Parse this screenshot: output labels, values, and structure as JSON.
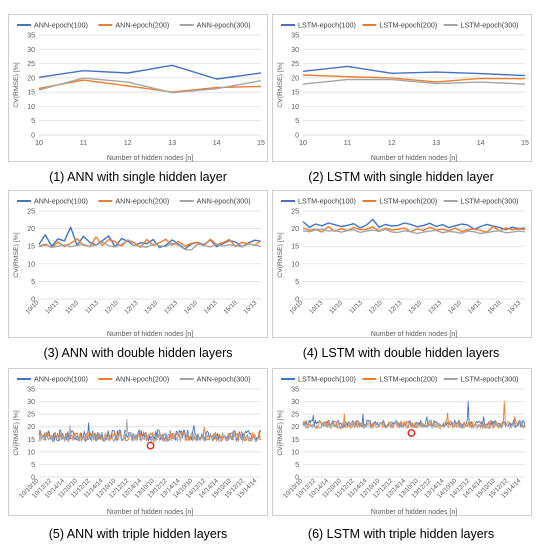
{
  "colors": {
    "series": [
      "#4472c4",
      "#ed7d31",
      "#a5a5a5"
    ],
    "grid": "#d9d9d9",
    "marker": "#e0201b"
  },
  "captions": [
    "(1) ANN with single hidden layer",
    "(2) LSTM with single hidden layer",
    "(3) ANN with double hidden layers",
    "(4) LSTM with double hidden layers",
    "(5) ANN with triple hidden layers",
    "(6) LSTM with triple hidden layers"
  ],
  "chart_data": [
    {
      "type": "line",
      "title": "(1) ANN with single hidden layer",
      "xlabel": "Number of hidden nodes [n]",
      "ylabel": "CV(RMSE) [%]",
      "ylim": [
        0,
        35
      ],
      "yticks": [
        0,
        5,
        10,
        15,
        20,
        25,
        30,
        35
      ],
      "x": [
        "10",
        "11",
        "12",
        "13",
        "14",
        "15"
      ],
      "tick_labels": [
        "10",
        "11",
        "12",
        "13",
        "14",
        "15"
      ],
      "rotate_ticks": false,
      "legend": "top",
      "series": [
        {
          "name": "ANN-epoch(100)",
          "values": [
            20.2,
            22.5,
            21.7,
            24.4,
            19.6,
            21.7
          ]
        },
        {
          "name": "ANN-epoch(200)",
          "values": [
            16.3,
            19.2,
            17.2,
            15.0,
            16.6,
            17.0
          ]
        },
        {
          "name": "ANN-epoch(300)",
          "values": [
            15.8,
            19.9,
            18.5,
            14.8,
            16.2,
            19.0
          ]
        }
      ]
    },
    {
      "type": "line",
      "title": "(2) LSTM with single hidden layer",
      "xlabel": "Number of hidden nodes [n]",
      "ylabel": "CV(RMSE) [%]",
      "ylim": [
        0,
        35
      ],
      "yticks": [
        0,
        5,
        10,
        15,
        20,
        25,
        30,
        35
      ],
      "x": [
        "10",
        "11",
        "12",
        "13",
        "14",
        "15"
      ],
      "tick_labels": [
        "10",
        "11",
        "12",
        "13",
        "14",
        "15"
      ],
      "rotate_ticks": false,
      "legend": "top",
      "series": [
        {
          "name": "LSTM-epoch(100)",
          "values": [
            22.3,
            24.0,
            21.6,
            22.0,
            21.5,
            20.8
          ]
        },
        {
          "name": "LSTM-epoch(200)",
          "values": [
            21.0,
            20.4,
            20.0,
            18.6,
            19.8,
            19.7
          ]
        },
        {
          "name": "LSTM-epoch(300)",
          "values": [
            17.8,
            19.4,
            19.4,
            18.0,
            18.5,
            17.8
          ]
        }
      ]
    },
    {
      "type": "line",
      "title": "(3) ANN with double hidden layers",
      "xlabel": "Number of hidden nodes [n]",
      "ylabel": "CV(RMSE) [%]",
      "ylim": [
        0,
        25
      ],
      "yticks": [
        0,
        5,
        10,
        15,
        20,
        25
      ],
      "x": [
        "10/10",
        "10/11",
        "10/12",
        "10/13",
        "10/14",
        "10/15",
        "11/10",
        "11/11",
        "11/12",
        "11/13",
        "11/14",
        "11/15",
        "12/10",
        "12/11",
        "12/12",
        "12/13",
        "12/14",
        "12/15",
        "13/10",
        "13/11",
        "13/12",
        "13/13",
        "13/14",
        "13/15",
        "14/10",
        "14/11",
        "14/12",
        "14/13",
        "14/14",
        "14/15",
        "15/10",
        "15/11",
        "15/12",
        "15/13",
        "15/14",
        "15/15"
      ],
      "tick_labels": [
        "10/10",
        "10/13",
        "11/10",
        "11/13",
        "12/10",
        "12/13",
        "13/10",
        "13/13",
        "14/10",
        "14/13",
        "15/10",
        "15/13"
      ],
      "rotate_ticks": true,
      "legend": "top",
      "series": [
        {
          "name": "ANN-epoch(100)",
          "values": [
            15.5,
            18.2,
            15.0,
            17.1,
            16.5,
            20.4,
            15.2,
            17.8,
            16.1,
            15.3,
            16.6,
            17.9,
            14.8,
            17.2,
            16.4,
            15.1,
            16.0,
            15.7,
            16.9,
            14.6,
            15.3,
            16.8,
            15.6,
            14.2,
            15.6,
            16.1,
            15.4,
            16.8,
            14.9,
            15.7,
            16.6,
            16.2,
            14.8,
            15.9,
            16.7,
            16.4
          ]
        },
        {
          "name": "ANN-epoch(200)",
          "values": [
            15.0,
            15.6,
            14.6,
            16.2,
            14.9,
            15.8,
            17.1,
            15.3,
            14.9,
            17.6,
            15.2,
            16.9,
            16.3,
            15.0,
            16.8,
            16.0,
            14.7,
            16.9,
            15.2,
            16.0,
            17.0,
            15.3,
            16.4,
            15.0,
            15.8,
            16.1,
            15.1,
            17.0,
            15.4,
            16.0,
            16.9,
            14.9,
            16.1,
            15.7,
            15.3,
            16.5
          ]
        },
        {
          "name": "ANN-epoch(300)",
          "values": [
            14.8,
            15.3,
            14.7,
            15.0,
            15.4,
            14.9,
            15.2,
            15.6,
            14.9,
            15.3,
            16.2,
            15.1,
            14.8,
            15.5,
            16.8,
            15.2,
            15.0,
            14.7,
            15.6,
            15.1,
            14.9,
            15.8,
            15.3,
            14.1,
            13.9,
            15.6,
            15.2,
            14.8,
            15.6,
            15.0,
            15.4,
            15.2,
            14.8,
            15.6,
            15.3,
            14.9
          ]
        }
      ]
    },
    {
      "type": "line",
      "title": "(4) LSTM with double hidden layers",
      "xlabel": "Number of hidden nodes [n]",
      "ylabel": "CV(RMSE) [%]",
      "ylim": [
        0,
        25
      ],
      "yticks": [
        0,
        5,
        10,
        15,
        20,
        25
      ],
      "x": [
        "10/10",
        "10/11",
        "10/12",
        "10/13",
        "10/14",
        "10/15",
        "11/10",
        "11/11",
        "11/12",
        "11/13",
        "11/14",
        "11/15",
        "12/10",
        "12/11",
        "12/12",
        "12/13",
        "12/14",
        "12/15",
        "13/10",
        "13/11",
        "13/12",
        "13/13",
        "13/14",
        "13/15",
        "14/10",
        "14/11",
        "14/12",
        "14/13",
        "14/14",
        "14/15",
        "15/10",
        "15/11",
        "15/12",
        "15/13",
        "15/14",
        "15/15"
      ],
      "tick_labels": [
        "10/10",
        "10/13",
        "11/10",
        "11/13",
        "12/10",
        "12/13",
        "13/10",
        "13/13",
        "14/10",
        "14/13",
        "15/10",
        "15/13"
      ],
      "rotate_ticks": true,
      "legend": "top",
      "series": [
        {
          "name": "LSTM-epoch(100)",
          "values": [
            22.0,
            20.4,
            21.3,
            20.8,
            21.6,
            21.1,
            20.6,
            20.9,
            21.4,
            20.2,
            21.0,
            22.6,
            20.4,
            21.2,
            20.7,
            20.9,
            21.6,
            21.2,
            20.5,
            20.9,
            21.5,
            20.6,
            21.1,
            20.3,
            20.8,
            21.3,
            21.0,
            19.8,
            20.6,
            21.2,
            20.7,
            20.3,
            19.7,
            20.4,
            20.0,
            20.1
          ]
        },
        {
          "name": "LSTM-epoch(200)",
          "values": [
            20.2,
            19.5,
            19.8,
            19.0,
            20.6,
            19.2,
            20.0,
            19.4,
            20.3,
            19.7,
            19.8,
            20.5,
            19.3,
            20.1,
            19.6,
            19.8,
            20.2,
            19.1,
            19.9,
            19.5,
            20.4,
            19.6,
            19.8,
            19.4,
            20.1,
            19.2,
            19.7,
            19.9,
            19.5,
            19.0,
            20.6,
            19.3,
            20.2,
            19.7,
            19.9,
            19.8
          ]
        },
        {
          "name": "LSTM-epoch(300)",
          "values": [
            19.4,
            19.1,
            19.6,
            19.8,
            19.3,
            19.5,
            19.0,
            19.4,
            19.7,
            18.9,
            19.3,
            19.6,
            19.2,
            19.8,
            19.0,
            18.9,
            19.4,
            19.1,
            18.6,
            19.0,
            19.3,
            19.5,
            18.8,
            19.2,
            19.0,
            18.7,
            19.3,
            19.1,
            18.6,
            18.9,
            19.2,
            19.4,
            18.8,
            19.0,
            19.3,
            19.1
          ]
        }
      ]
    },
    {
      "type": "line",
      "title": "(5) ANN with triple hidden layers",
      "xlabel": "Number of hidden nodes [n]",
      "ylabel": "CV(RMSE) [%]",
      "ylim": [
        0,
        35
      ],
      "yticks": [
        0,
        5,
        10,
        15,
        20,
        25,
        30,
        35
      ],
      "x_count": 216,
      "tick_labels": [
        "10/10/10",
        "10/12/12",
        "10/14/14",
        "11/10/10",
        "11/12/12",
        "11/14/14",
        "12/10/10",
        "12/12/12",
        "12/14/14",
        "13/10/10",
        "13/12/12",
        "13/14/14",
        "14/10/10",
        "14/12/12",
        "14/14/14",
        "15/10/10",
        "15/12/12",
        "15/14/14"
      ],
      "rotate_ticks": true,
      "legend": "top",
      "series": [
        {
          "name": "ANN-epoch(100)",
          "base": 16.5,
          "amp": 2.2,
          "spikes": [
            [
              48,
              21.5
            ],
            [
              150,
              20.5
            ]
          ]
        },
        {
          "name": "ANN-epoch(200)",
          "base": 16.0,
          "amp": 2.0,
          "spikes": [
            [
              160,
              20.0
            ]
          ]
        },
        {
          "name": "ANN-epoch(300)",
          "base": 15.8,
          "amp": 1.8,
          "spikes": [
            [
              85,
              23.0
            ],
            [
              30,
              20.5
            ]
          ]
        }
      ],
      "highlight": {
        "index": 108,
        "value": 12.5
      }
    },
    {
      "type": "line",
      "title": "(6) LSTM with triple hidden layers",
      "xlabel": "Number of hidden nodes [n]",
      "ylabel": "CV(RMSE) [%]",
      "ylim": [
        0,
        35
      ],
      "yticks": [
        0,
        5,
        10,
        15,
        20,
        25,
        30,
        35
      ],
      "x_count": 216,
      "tick_labels": [
        "10/10/10",
        "10/12/12",
        "10/14/14",
        "11/10/10",
        "11/12/12",
        "11/14/14",
        "12/10/10",
        "12/12/12",
        "12/14/14",
        "13/10/10",
        "13/12/12",
        "13/14/14",
        "14/10/10",
        "14/12/12",
        "14/14/14",
        "15/10/10",
        "15/12/12",
        "15/14/14"
      ],
      "rotate_ticks": true,
      "legend": "top",
      "series": [
        {
          "name": "LSTM-epoch(100)",
          "base": 21.2,
          "amp": 1.4,
          "spikes": [
            [
              10,
              24.5
            ],
            [
              58,
              25.0
            ],
            [
              120,
              24.0
            ],
            [
              160,
              30.0
            ],
            [
              175,
              24.0
            ]
          ]
        },
        {
          "name": "LSTM-epoch(200)",
          "base": 20.8,
          "amp": 1.5,
          "spikes": [
            [
              40,
              25.0
            ],
            [
              140,
              25.5
            ],
            [
              195,
              30.0
            ],
            [
              205,
              24.0
            ]
          ]
        },
        {
          "name": "LSTM-epoch(300)",
          "base": 20.4,
          "amp": 1.1,
          "spikes": [
            [
              90,
              23.0
            ]
          ]
        }
      ],
      "highlight": {
        "index": 105,
        "value": 17.5
      }
    }
  ]
}
